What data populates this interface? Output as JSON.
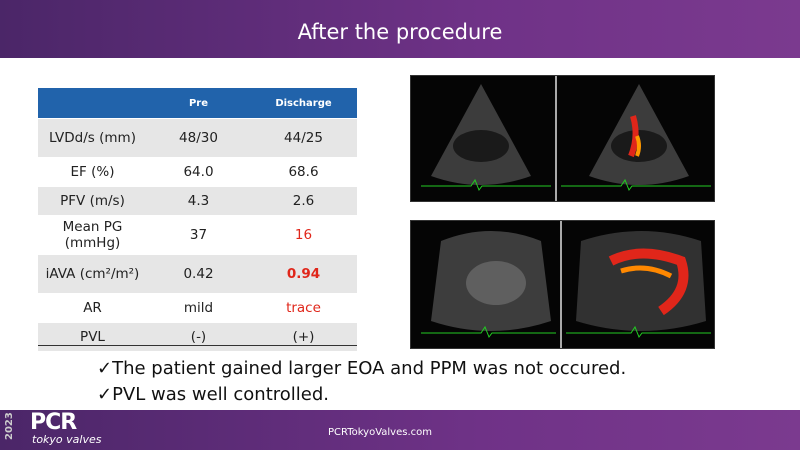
{
  "header": {
    "title": "After the procedure"
  },
  "table": {
    "columns": [
      "Pre",
      "Discharge"
    ],
    "rows": [
      [
        "LVDd/s (mm)",
        "48/30",
        "44/25"
      ],
      [
        "EF (%)",
        "64.0",
        "68.6"
      ],
      [
        "PFV (m/s)",
        "4.3",
        "2.6"
      ],
      [
        "Mean PG (mmHg)",
        "37",
        "16"
      ],
      [
        "iAVA (cm²/m²)",
        "0.42",
        "0.94"
      ],
      [
        "AR",
        "mild",
        "trace"
      ],
      [
        "PVL",
        "(-)",
        "(+)"
      ]
    ]
  },
  "bullets": [
    "✓The patient gained larger EOA and PPM was not occured.",
    "✓PVL  was well controlled."
  ],
  "footer": {
    "year": "2023",
    "logo": "PCR",
    "logo_sub": "tokyo valves",
    "url": "PCRTokyoValves.com"
  }
}
